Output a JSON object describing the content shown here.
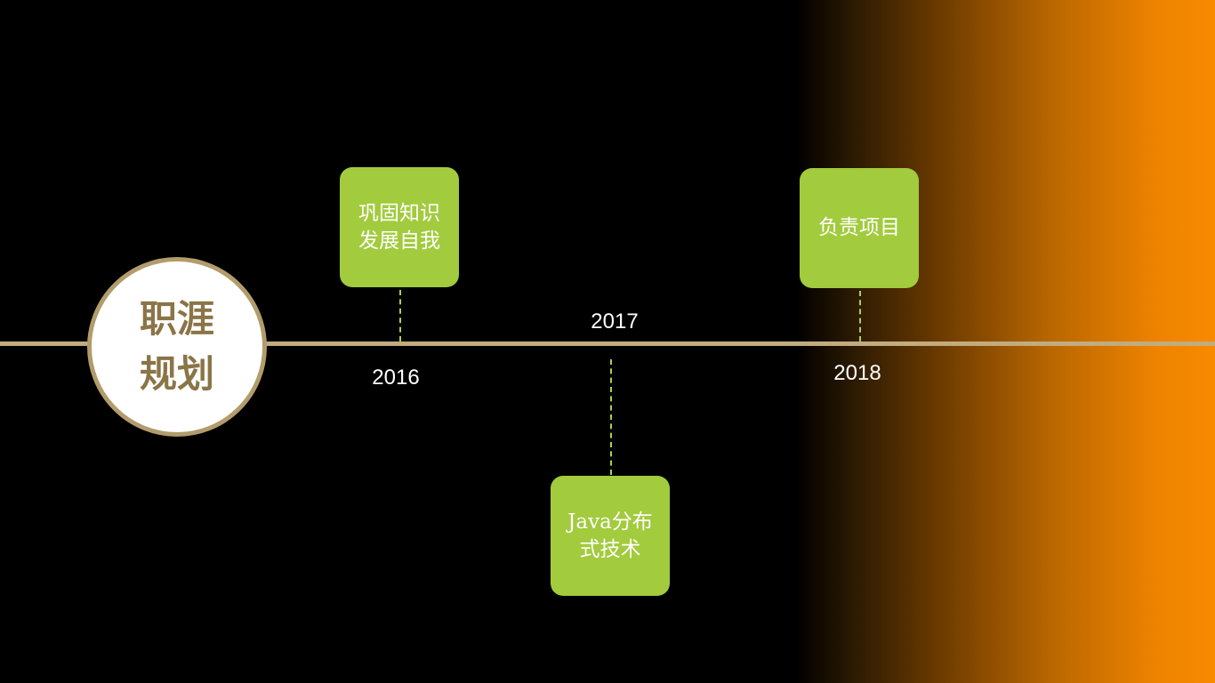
{
  "title": "职涯规划",
  "colors": {
    "milestone_fill": "#a2cb3d",
    "axis": "#c2ab7d",
    "title_text": "#8a7547",
    "gradient_accent": "#f78a00"
  },
  "milestones": [
    {
      "year": "2016",
      "label": "巩固知识发展自我"
    },
    {
      "year": "2017",
      "label": "Java分布式技术"
    },
    {
      "year": "2018",
      "label": "负责项目"
    }
  ]
}
